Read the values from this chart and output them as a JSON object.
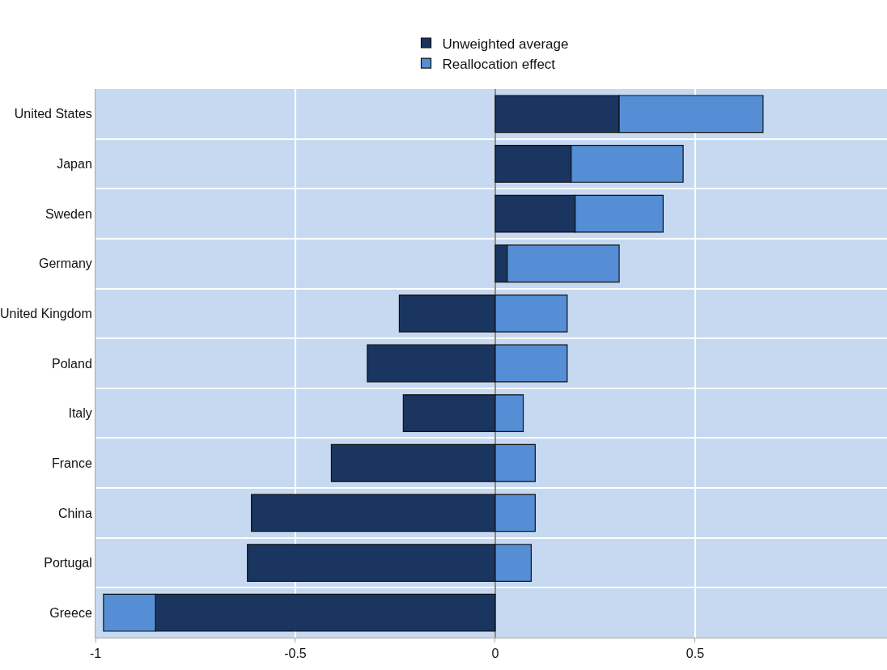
{
  "chart_data": {
    "type": "bar",
    "orientation": "horizontal",
    "stacked": true,
    "categories": [
      "United States",
      "Japan",
      "Sweden",
      "Germany",
      "United Kingdom",
      "Poland",
      "Italy",
      "France",
      "China",
      "Portugal",
      "Greece"
    ],
    "series": [
      {
        "name": "Unweighted average",
        "color": "#1a3560",
        "values": [
          0.31,
          0.19,
          0.2,
          0.03,
          -0.24,
          -0.32,
          -0.23,
          -0.41,
          -0.61,
          -0.62,
          -0.85
        ]
      },
      {
        "name": "Reallocation effect",
        "color": "#558ed5",
        "values": [
          0.36,
          0.28,
          0.22,
          0.28,
          0.18,
          0.18,
          0.07,
          0.1,
          0.1,
          0.09,
          -0.13
        ]
      }
    ],
    "xlim": [
      -1,
      0.98
    ],
    "xticks": [
      -1,
      -0.5,
      0,
      0.5
    ],
    "grid": true,
    "legend": "top"
  }
}
